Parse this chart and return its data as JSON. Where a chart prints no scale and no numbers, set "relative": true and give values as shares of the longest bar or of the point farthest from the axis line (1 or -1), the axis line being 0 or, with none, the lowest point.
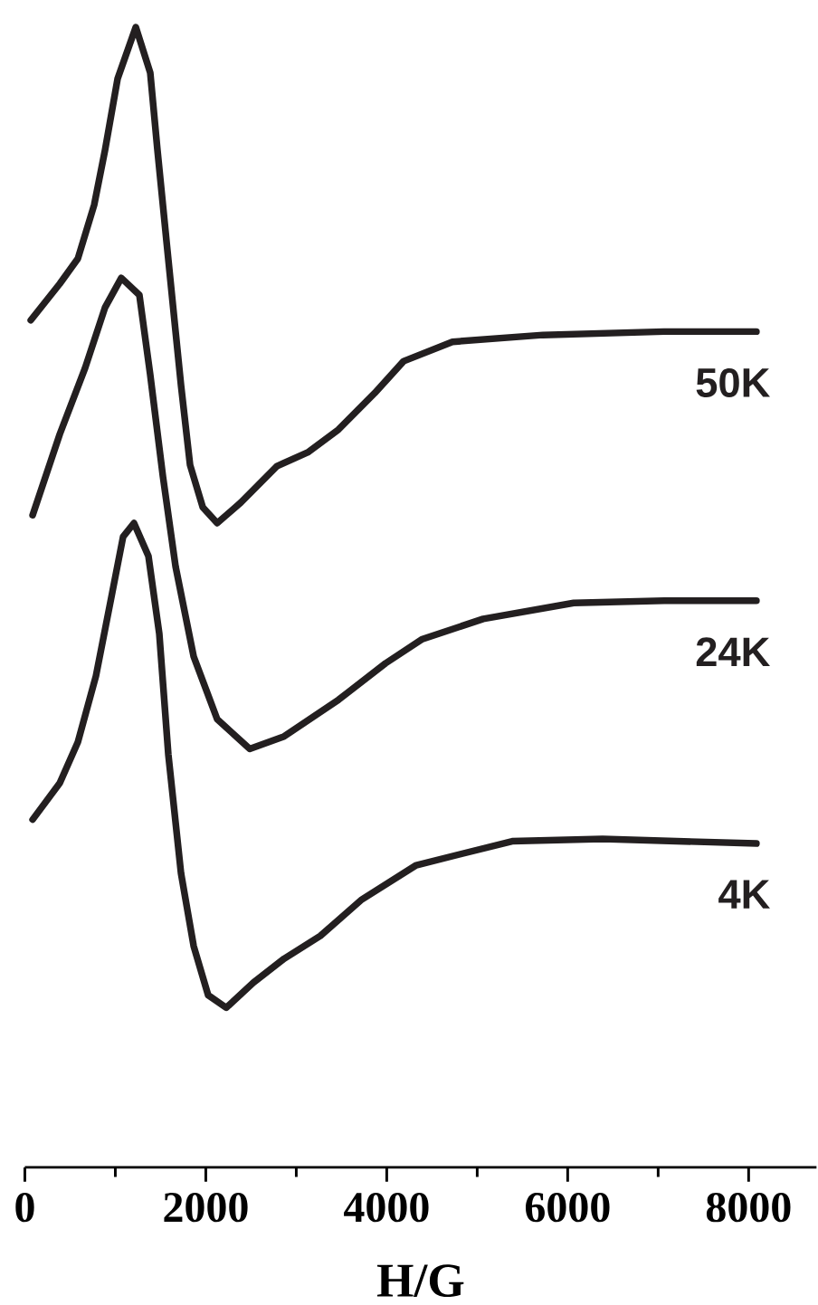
{
  "chart_data": {
    "type": "line",
    "relative": true,
    "xlabel": "H/G",
    "xlim": [
      0,
      8750
    ],
    "xticks": [
      0,
      2000,
      4000,
      6000,
      8000
    ],
    "series": [
      {
        "name": "50K",
        "color": "#231f20",
        "x": [
          66,
          386,
          586,
          766,
          886,
          1026,
          1226,
          1386,
          1466,
          1566,
          1666,
          1726,
          1826,
          1966,
          2126,
          2386,
          2786,
          3126,
          3466,
          3866,
          4186,
          4726,
          5726,
          7066,
          8086
        ],
        "values": [
          0.743,
          0.775,
          0.797,
          0.844,
          0.892,
          0.955,
          1,
          0.96,
          0.892,
          0.812,
          0.733,
          0.686,
          0.616,
          0.579,
          0.565,
          0.583,
          0.615,
          0.627,
          0.647,
          0.679,
          0.707,
          0.724,
          0.73,
          0.733,
          0.733
        ]
      },
      {
        "name": "24K",
        "color": "#231f20",
        "x": [
          86,
          386,
          666,
          886,
          1066,
          1266,
          1386,
          1526,
          1666,
          1866,
          2126,
          2486,
          2866,
          3466,
          3986,
          4386,
          5066,
          6066,
          7066,
          8086
        ],
        "values": [
          0.572,
          0.643,
          0.701,
          0.754,
          0.78,
          0.765,
          0.695,
          0.606,
          0.527,
          0.448,
          0.393,
          0.367,
          0.378,
          0.41,
          0.442,
          0.463,
          0.481,
          0.495,
          0.497,
          0.497
        ]
      },
      {
        "name": "4K",
        "color": "#231f20",
        "x": [
          86,
          386,
          586,
          786,
          966,
          1086,
          1206,
          1366,
          1486,
          1586,
          1726,
          1866,
          2026,
          2226,
          2526,
          2866,
          3266,
          3726,
          4326,
          5386,
          6386,
          8086
        ],
        "values": [
          0.305,
          0.337,
          0.373,
          0.431,
          0.504,
          0.553,
          0.565,
          0.536,
          0.468,
          0.362,
          0.258,
          0.194,
          0.151,
          0.14,
          0.162,
          0.183,
          0.203,
          0.235,
          0.265,
          0.286,
          0.288,
          0.284
        ]
      }
    ]
  }
}
